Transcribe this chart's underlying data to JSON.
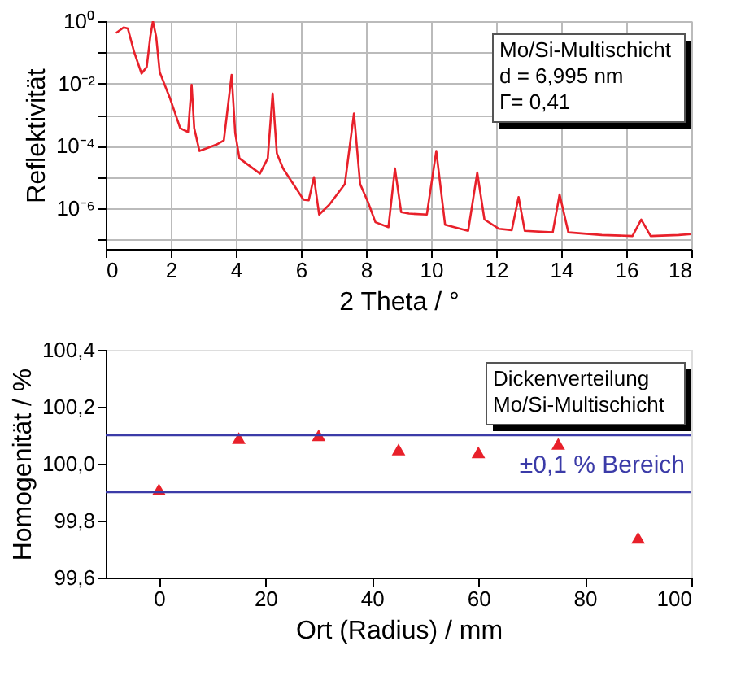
{
  "chart_data": [
    {
      "type": "line",
      "xlabel": "2 Theta / °",
      "ylabel": "Reflektivität",
      "log": "y",
      "grid": true,
      "xlim": [
        0,
        18
      ],
      "xticks": [
        0,
        2,
        4,
        6,
        8,
        10,
        12,
        14,
        16,
        18
      ],
      "ylim": [
        5e-08,
        1
      ],
      "yticks": [
        {
          "value": 1,
          "label": "10⁰"
        },
        {
          "value": 0.1,
          "label": null
        },
        {
          "value": 0.01,
          "label": "10⁻²"
        },
        {
          "value": 0.001,
          "label": null
        },
        {
          "value": 0.0001,
          "label": "10⁻⁴"
        },
        {
          "value": 1e-05,
          "label": null
        },
        {
          "value": 1e-06,
          "label": "10⁻⁶"
        },
        {
          "value": 1e-07,
          "label": null
        }
      ],
      "annotations": [
        "Mo/Si-Multischicht",
        "d = 6,995 nm",
        "Γ= 0,41"
      ],
      "series": [
        {
          "color": "#e8202a",
          "x": [
            0.32,
            0.55,
            0.68,
            0.87,
            1.1,
            1.26,
            1.37,
            1.45,
            1.55,
            1.66,
            1.97,
            2.29,
            2.53,
            2.64,
            2.72,
            2.88,
            3.4,
            3.63,
            3.87,
            3.98,
            4.11,
            4.74,
            4.98,
            5.13,
            5.26,
            5.45,
            6.08,
            6.24,
            6.4,
            6.56,
            6.87,
            7.35,
            7.63,
            7.82,
            8.06,
            8.29,
            8.69,
            8.89,
            9.08,
            9.32,
            9.87,
            10.16,
            10.43,
            11.14,
            11.42,
            11.64,
            12.09,
            12.48,
            12.69,
            12.88,
            13.74,
            13.95,
            14.22,
            15.25,
            16.19,
            16.46,
            16.75,
            17.61,
            18
          ],
          "values": [
            0.42,
            0.63,
            0.58,
            0.105,
            0.021,
            0.034,
            0.32,
            1.0,
            0.32,
            0.023,
            0.0035,
            0.00037,
            0.00028,
            0.0091,
            0.00037,
            6.9e-05,
            0.00011,
            0.00015,
            0.019,
            0.00026,
            4e-05,
            1.3e-05,
            4e-05,
            0.0048,
            5.8e-05,
            1.9e-05,
            1.9e-06,
            1.8e-06,
            1e-05,
            6.3e-07,
            1.3e-06,
            6e-06,
            0.0011,
            6e-06,
            1.6e-06,
            3.6e-07,
            2.5e-07,
            1.9e-05,
            7.6e-07,
            6.8e-07,
            6.3e-07,
            6.9e-05,
            3e-07,
            1.9e-07,
            1.4e-05,
            4.4e-07,
            2.2e-07,
            2e-07,
            2.3e-06,
            1.9e-07,
            1.7e-07,
            2.8e-06,
            1.7e-07,
            1.4e-07,
            1.3e-07,
            4.4e-07,
            1.3e-07,
            1.4e-07,
            1.5e-07
          ]
        }
      ]
    },
    {
      "type": "scatter",
      "xlabel": "Ort (Radius) / mm",
      "ylabel": "Homogenität / %",
      "grid": false,
      "marker": "triangle",
      "xlim": [
        -10,
        100
      ],
      "xticks": [
        0,
        20,
        40,
        60,
        80,
        100
      ],
      "ylim": [
        99.6,
        100.4
      ],
      "yticks": [
        {
          "value": 99.6,
          "label": "99,6"
        },
        {
          "value": 99.8,
          "label": "99,8"
        },
        {
          "value": 100.0,
          "label": "100,0"
        },
        {
          "value": 100.2,
          "label": "100,2"
        },
        {
          "value": 100.4,
          "label": "100,4"
        }
      ],
      "ref_lines": [
        {
          "axis": "y",
          "value": 100.1,
          "color": "#3b3ba8"
        },
        {
          "axis": "y",
          "value": 99.9,
          "color": "#3b3ba8",
          "label": "±0,1 % Bereich"
        }
      ],
      "annotations": [
        "Dickenverteilung",
        "Mo/Si-Multischicht"
      ],
      "series": [
        {
          "color": "#e8202a",
          "x": [
            0,
            15,
            30,
            45,
            60,
            75,
            90
          ],
          "values": [
            99.91,
            100.09,
            100.1,
            100.05,
            100.04,
            100.07,
            99.74
          ]
        }
      ]
    }
  ]
}
